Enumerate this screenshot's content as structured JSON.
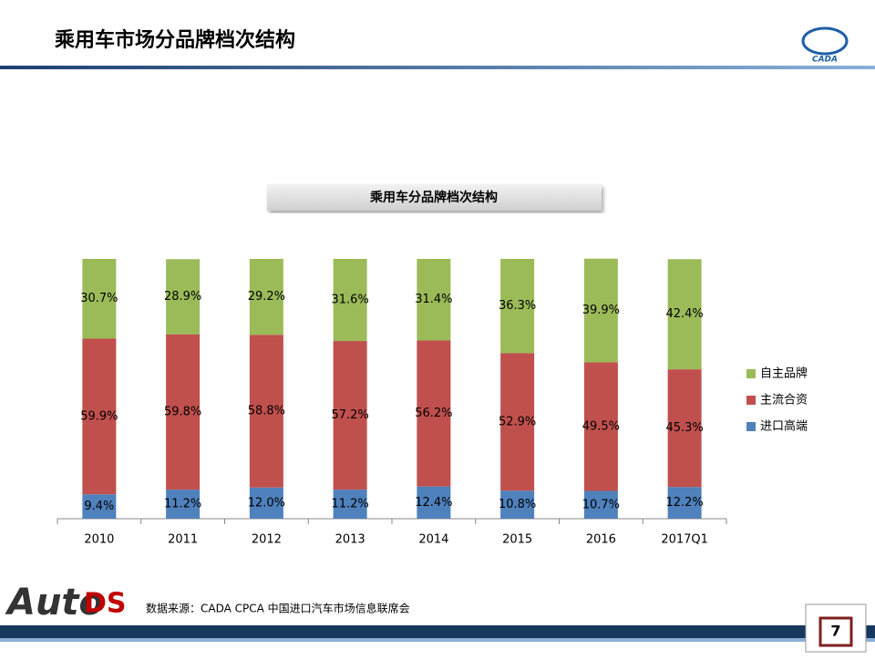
{
  "header": {
    "title": "乘用车市场分品牌档次结构",
    "logo": "CADA"
  },
  "chart_data": {
    "type": "stacked_bar",
    "title": "乘用车分品牌档次结构",
    "categories": [
      "2010",
      "2011",
      "2012",
      "2013",
      "2014",
      "2015",
      "2016",
      "2017Q1"
    ],
    "ylim": [
      0,
      100
    ],
    "legend": "right",
    "series": [
      {
        "name": "进口高端",
        "color": "#4f81bd",
        "values": [
          9.4,
          11.2,
          12.0,
          11.2,
          12.4,
          10.8,
          10.7,
          12.2
        ],
        "value_labels": [
          "9.4%",
          "11.2%",
          "12.0%",
          "11.2%",
          "12.4%",
          "10.8%",
          "10.7%",
          "12.2%"
        ]
      },
      {
        "name": "主流合资",
        "color": "#c0504d",
        "values": [
          59.9,
          59.8,
          58.8,
          57.2,
          56.2,
          52.9,
          49.5,
          45.3
        ],
        "value_labels": [
          "59.9%",
          "59.8%",
          "58.8%",
          "57.2%",
          "56.2%",
          "52.9%",
          "49.5%",
          "45.3%"
        ]
      },
      {
        "name": "自主品牌",
        "color": "#9bbb59",
        "values": [
          30.7,
          28.9,
          29.2,
          31.6,
          31.4,
          36.3,
          39.9,
          42.4
        ],
        "value_labels": [
          "30.7%",
          "28.9%",
          "29.2%",
          "31.6%",
          "31.4%",
          "36.3%",
          "39.9%",
          "42.4%"
        ]
      }
    ]
  },
  "footer": {
    "source": "数据来源：CADA  CPCA  中国进口汽车市场信息联席会",
    "page": "7",
    "logo_a": "Auto",
    "logo_b": "DS"
  }
}
